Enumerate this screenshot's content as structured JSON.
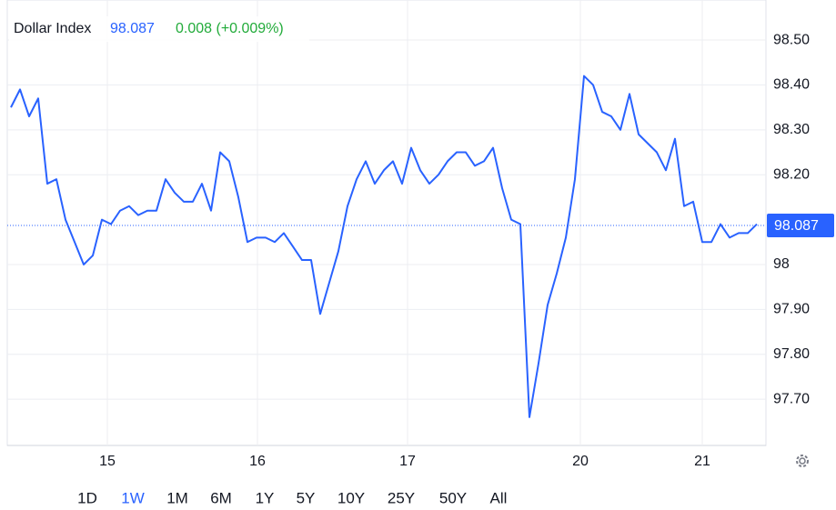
{
  "chart_data": {
    "type": "line",
    "title": "Dollar Index",
    "last_value": 98.087,
    "change": "0.008 (+0.009%)",
    "color": "#2962ff",
    "x": [
      0,
      1,
      2,
      3,
      4,
      5,
      6,
      7,
      8,
      9,
      10,
      11,
      12,
      13,
      14,
      15,
      16,
      17,
      18,
      19,
      20,
      21,
      22,
      23,
      24,
      25,
      26,
      27,
      28,
      29,
      30,
      31,
      32,
      33,
      34,
      35,
      36,
      37,
      38,
      39,
      40,
      41,
      42,
      43,
      44,
      45,
      46,
      47,
      48,
      49,
      50,
      51,
      52,
      53,
      54,
      55,
      56,
      57,
      58,
      59,
      60,
      61,
      62,
      63,
      64,
      65,
      66,
      67,
      68,
      69,
      70,
      71,
      72,
      73,
      74,
      75,
      76,
      77,
      78,
      79,
      80,
      81,
      82
    ],
    "series": [
      {
        "name": "Dollar Index",
        "color": "#2962ff",
        "values": [
          98.35,
          98.39,
          98.33,
          98.37,
          98.18,
          98.19,
          98.1,
          98.05,
          98.0,
          98.02,
          98.1,
          98.09,
          98.12,
          98.13,
          98.11,
          98.12,
          98.12,
          98.19,
          98.16,
          98.14,
          98.14,
          98.18,
          98.12,
          98.25,
          98.23,
          98.15,
          98.05,
          98.06,
          98.06,
          98.05,
          98.07,
          98.04,
          98.01,
          98.01,
          97.89,
          97.96,
          98.03,
          98.13,
          98.19,
          98.23,
          98.18,
          98.21,
          98.23,
          98.18,
          98.26,
          98.21,
          98.18,
          98.2,
          98.23,
          98.25,
          98.25,
          98.22,
          98.23,
          98.26,
          98.17,
          98.1,
          98.09,
          97.66,
          97.78,
          97.91,
          97.98,
          98.06,
          98.19,
          98.42,
          98.4,
          98.34,
          98.33,
          98.3,
          98.38,
          98.29,
          98.27,
          98.25,
          98.21,
          98.28,
          98.13,
          98.14,
          98.05,
          98.05,
          98.09,
          98.06,
          98.07,
          98.07,
          98.09
        ]
      }
    ],
    "xlim": [
      0,
      82
    ],
    "xticks": [
      {
        "value": 10.6,
        "label": "15"
      },
      {
        "value": 27.1,
        "label": "16"
      },
      {
        "value": 43.6,
        "label": "17"
      },
      {
        "value": 62.6,
        "label": "20"
      },
      {
        "value": 76,
        "label": "21"
      }
    ],
    "ylim": [
      97.597,
      98.573
    ],
    "yticks": [
      {
        "value": 98.5,
        "label": "98.50"
      },
      {
        "value": 98.4,
        "label": "98.40"
      },
      {
        "value": 98.3,
        "label": "98.30"
      },
      {
        "value": 98.2,
        "label": "98.20"
      },
      98,
      {
        "value": 97.9,
        "label": "97.90"
      },
      {
        "value": 97.8,
        "label": "97.80"
      },
      {
        "value": 97.7,
        "label": "97.70"
      }
    ],
    "grid": true,
    "ranges": [
      "1D",
      "1W",
      "1M",
      "6M",
      "1Y",
      "5Y",
      "10Y",
      "25Y",
      "50Y",
      "All"
    ],
    "active_range": 1
  }
}
